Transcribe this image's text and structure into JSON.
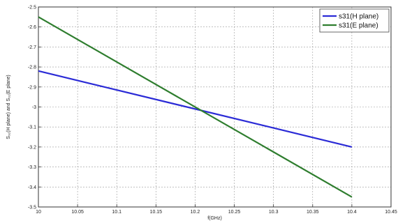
{
  "chart_data": {
    "type": "line",
    "xlabel": "f(GHz)",
    "ylabel": "S₃₁(H plane) and S₃₁(E plane)",
    "xlim": [
      10,
      10.45
    ],
    "ylim": [
      -3.5,
      -2.5
    ],
    "xticks": [
      10,
      10.05,
      10.1,
      10.15,
      10.2,
      10.25,
      10.3,
      10.35,
      10.4,
      10.45
    ],
    "xtick_labels": [
      "10",
      "10.05",
      "10.1",
      "10.15",
      "10.2",
      "10.25",
      "10.3",
      "10.35",
      "10.4",
      "10.45"
    ],
    "yticks": [
      -2.5,
      -2.6,
      -2.7,
      -2.8,
      -2.9,
      -3,
      -3.1,
      -3.2,
      -3.3,
      -3.4,
      -3.5
    ],
    "ytick_labels": [
      "-2.5",
      "-2.6",
      "-2.7",
      "-2.8",
      "-2.9",
      "-3",
      "-3.1",
      "-3.2",
      "-3.3",
      "-3.4",
      "-3.5"
    ],
    "grid": true,
    "legend_position": "top-right",
    "series": [
      {
        "name": "s31(H plane)",
        "color": "#2b2bd6",
        "x": [
          10,
          10.4
        ],
        "y": [
          -2.82,
          -3.2
        ]
      },
      {
        "name": "s31(E plane)",
        "color": "#2e7d2e",
        "x": [
          10,
          10.4
        ],
        "y": [
          -2.55,
          -3.45
        ]
      }
    ]
  }
}
